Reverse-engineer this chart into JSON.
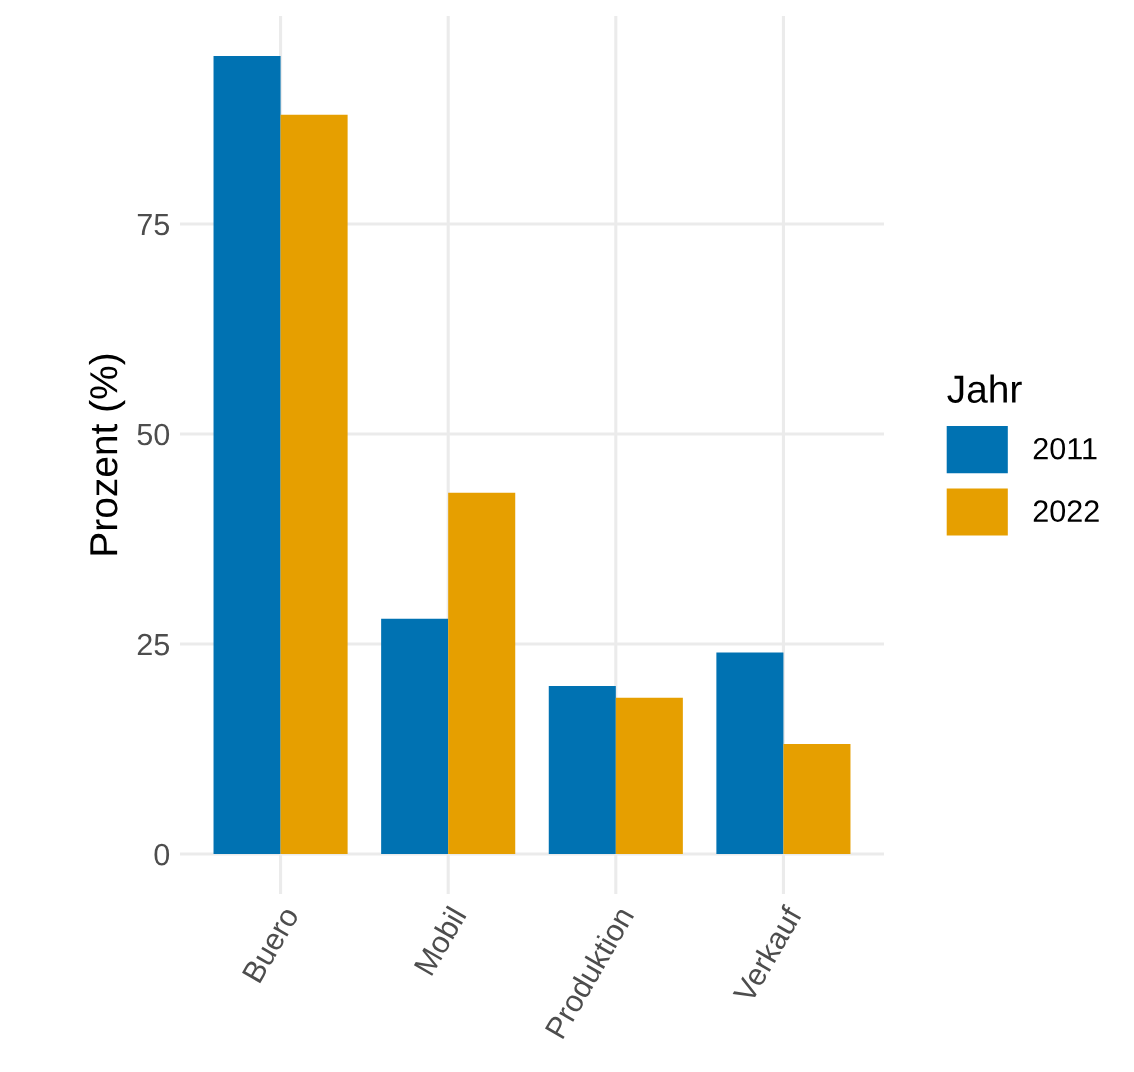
{
  "chart_data": {
    "type": "bar",
    "ylabel": "Prozent (%)",
    "legend_title": "Jahr",
    "categories": [
      "Buero",
      "Mobil",
      "Produktion",
      "Verkauf"
    ],
    "series": [
      {
        "name": "2011",
        "color": "#0072b2",
        "values": [
          95,
          28,
          20,
          24
        ]
      },
      {
        "name": "2022",
        "color": "#e69f00",
        "values": [
          88,
          43,
          18.6,
          13.1
        ]
      }
    ],
    "ylim": [
      -4.75,
      99.75
    ],
    "yticks": [
      0,
      25,
      50,
      75
    ],
    "grid": true,
    "legend": "right"
  }
}
